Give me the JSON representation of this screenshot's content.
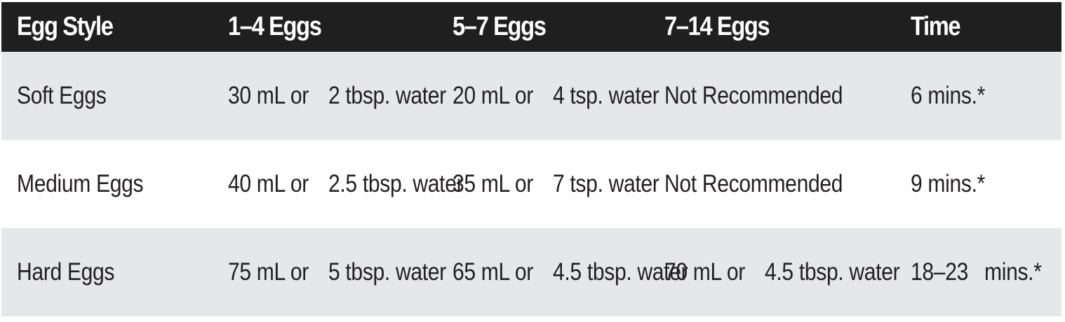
{
  "table": {
    "colors": {
      "header_bg": "#1f1f1f",
      "header_text": "#ffffff",
      "stripe_bg": "#e6e7e8",
      "plain_bg": "#ffffff",
      "body_text": "#231f20"
    },
    "headers": [
      "Egg Style",
      "1–4 Eggs",
      "5–7 Eggs",
      "7–14 Eggs",
      "Time"
    ],
    "rows": [
      {
        "style": "Soft Eggs",
        "eggs_1_4": [
          "30 mL or",
          "2 tbsp. water"
        ],
        "eggs_5_7": [
          "20 mL or",
          "4 tsp. water"
        ],
        "eggs_7_14": [
          "Not Recommended"
        ],
        "time": [
          "6 mins.*"
        ]
      },
      {
        "style": "Medium Eggs",
        "eggs_1_4": [
          "40 mL or",
          "2.5 tbsp. water"
        ],
        "eggs_5_7": [
          "35 mL or",
          "7 tsp. water"
        ],
        "eggs_7_14": [
          "Not Recommended"
        ],
        "time": [
          "9 mins.*"
        ]
      },
      {
        "style": "Hard Eggs",
        "eggs_1_4": [
          "75 mL or",
          "5 tbsp. water"
        ],
        "eggs_5_7": [
          "65 mL or",
          "4.5 tbsp. water"
        ],
        "eggs_7_14": [
          "70 mL or",
          "4.5 tbsp. water"
        ],
        "time": [
          "18–23",
          "mins.*"
        ]
      }
    ]
  }
}
